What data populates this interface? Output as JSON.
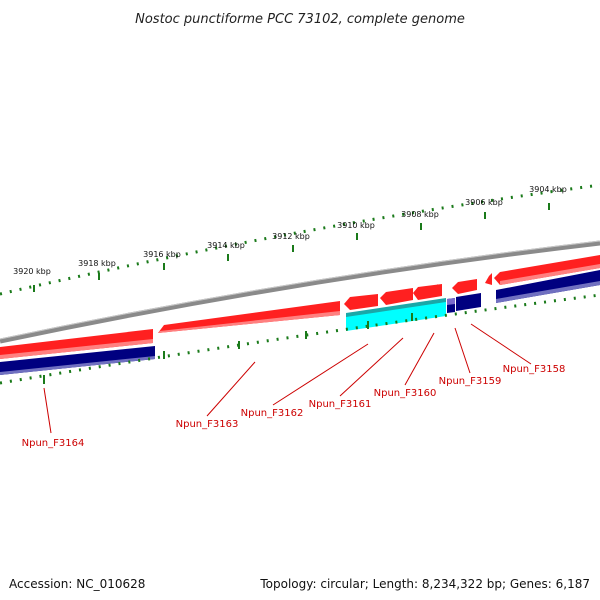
{
  "title": "Nostoc punctiforme PCC 73102, complete genome",
  "scale": {
    "labels": [
      "3904 kbp",
      "3906 kbp",
      "3908 kbp",
      "3910 kbp",
      "3912 kbp",
      "3914 kbp",
      "3916 kbp",
      "3918 kbp",
      "3920 kbp"
    ]
  },
  "genes": [
    {
      "name": "Npun_F3158"
    },
    {
      "name": "Npun_F3159"
    },
    {
      "name": "Npun_F3160"
    },
    {
      "name": "Npun_F3161"
    },
    {
      "name": "Npun_F3162"
    },
    {
      "name": "Npun_F3163"
    },
    {
      "name": "Npun_F3164"
    }
  ],
  "colors": {
    "backbone": "#8a8a8a",
    "forward_gene": "#ff0000",
    "reverse_gene": "#000080",
    "highlight_gene": "#00ffff",
    "tick": "#1a7a1a",
    "label": "#cc0000"
  },
  "footer": {
    "accession": "Accession: NC_010628",
    "summary": "Topology: circular; Length: 8,234,322 bp; Genes: 6,187"
  }
}
